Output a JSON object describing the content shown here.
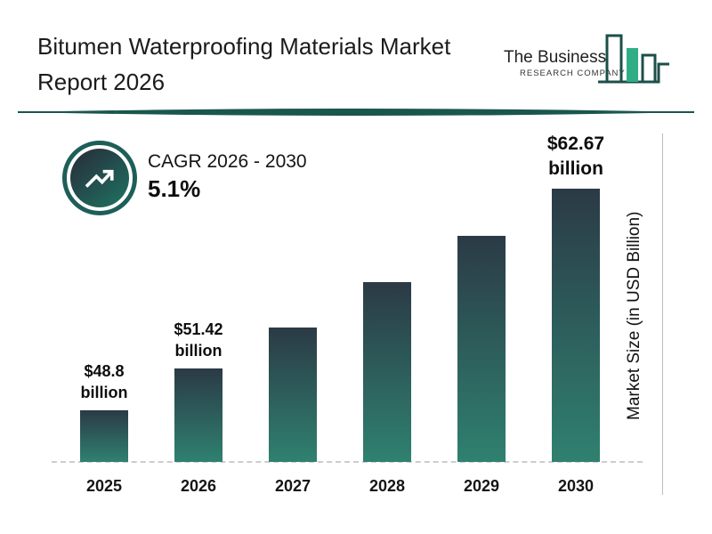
{
  "header": {
    "title_line1": "Bitumen Waterproofing Materials Market",
    "title_line2": "Report 2026"
  },
  "logo": {
    "name": "The Business",
    "subname": "RESEARCH COMPANY",
    "icon": "bar-chart-logo-icon"
  },
  "cagr": {
    "icon": "trending-up-icon",
    "label": "CAGR 2026 - 2030",
    "value": "5.1%"
  },
  "chart_data": {
    "type": "bar",
    "title": "Bitumen Waterproofing Materials Market Report 2026",
    "categories": [
      "2025",
      "2026",
      "2027",
      "2028",
      "2029",
      "2030"
    ],
    "values": [
      48.8,
      51.42,
      54.0,
      56.8,
      59.7,
      62.67
    ],
    "data_labels": {
      "2025": [
        "$48.8",
        "billion"
      ],
      "2026": [
        "$51.42",
        "billion"
      ],
      "2030": [
        "$62.67",
        "billion"
      ]
    },
    "emphasized_label": "2030",
    "xlabel": "",
    "ylabel": "Market Size (in USD Billion)",
    "grid": "off",
    "legend": "none",
    "axis_style": "dashed-baseline, values only labeled for 2025, 2026, 2030; 2027-2029 estimated from 5.1% CAGR",
    "bar_gradient_top": "#2b3a46",
    "bar_gradient_bottom": "#2f8170"
  },
  "colors": {
    "accent_teal": "#1d5f58",
    "logo_green": "#2fae85",
    "text_dark": "#1c1c1c",
    "axis_gray": "#bcbcbc"
  }
}
